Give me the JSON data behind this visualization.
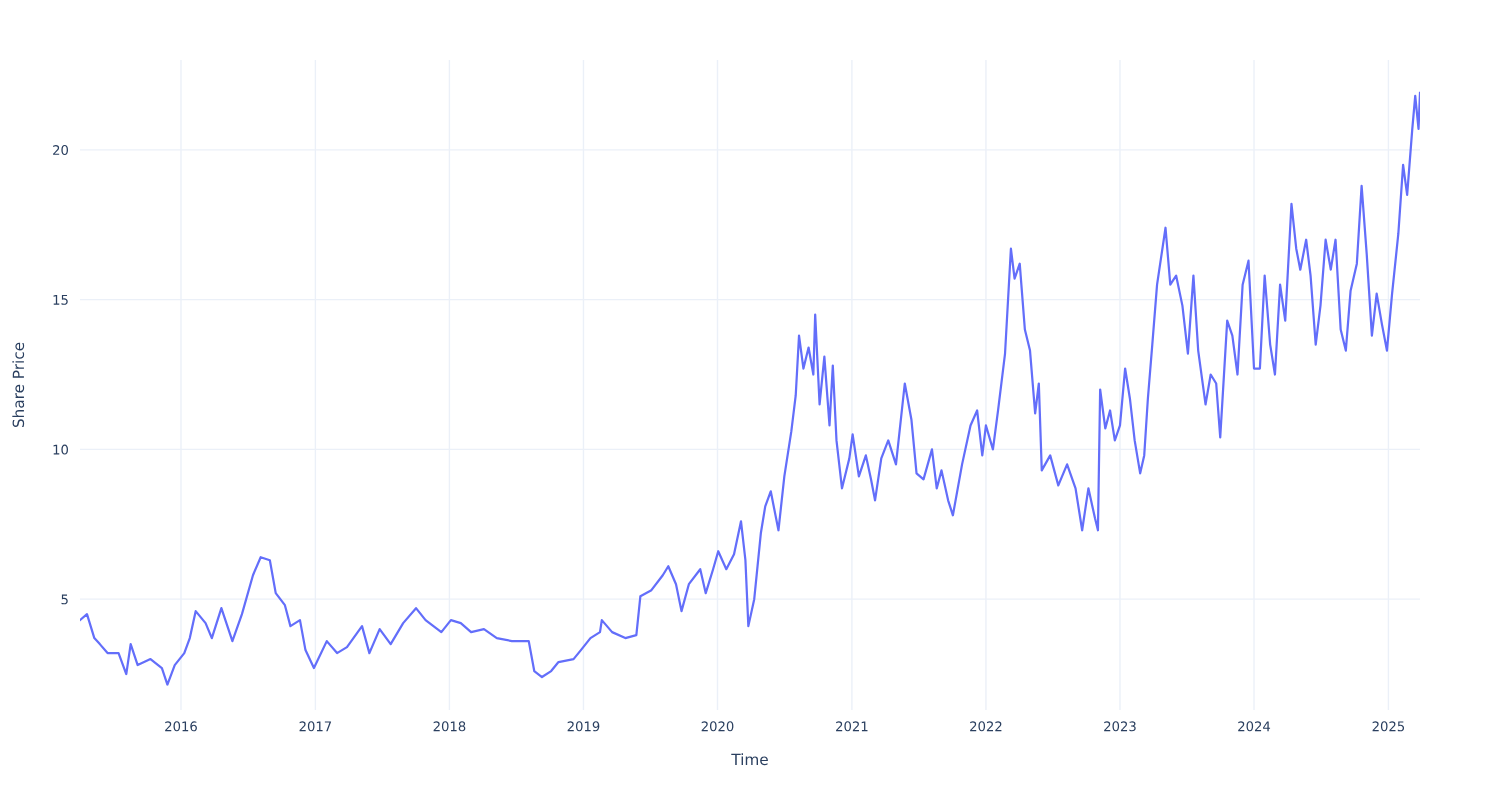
{
  "chart_data": {
    "type": "line",
    "xlabel": "Time",
    "ylabel": "Share Price",
    "color": "#636efa",
    "grid": true,
    "line_style": "solid",
    "marker": "none",
    "xlim": [
      "2015-04-01",
      "2025-03-28"
    ],
    "ylim": [
      1.3,
      23
    ],
    "xticks": [
      {
        "value": "2016-01-01",
        "label": "2016"
      },
      {
        "value": "2017-01-01",
        "label": "2017"
      },
      {
        "value": "2018-01-01",
        "label": "2018"
      },
      {
        "value": "2019-01-01",
        "label": "2019"
      },
      {
        "value": "2020-01-01",
        "label": "2020"
      },
      {
        "value": "2021-01-01",
        "label": "2021"
      },
      {
        "value": "2022-01-01",
        "label": "2022"
      },
      {
        "value": "2023-01-01",
        "label": "2023"
      },
      {
        "value": "2024-01-01",
        "label": "2024"
      },
      {
        "value": "2025-01-01",
        "label": "2025"
      }
    ],
    "yticks": [
      5,
      10,
      15,
      20
    ],
    "x": [
      "2015-04-01",
      "2015-04-20",
      "2015-05-10",
      "2015-05-25",
      "2015-06-15",
      "2015-07-15",
      "2015-08-05",
      "2015-08-17",
      "2015-09-05",
      "2015-10-10",
      "2015-11-10",
      "2015-11-25",
      "2015-12-15",
      "2016-01-10",
      "2016-01-25",
      "2016-02-10",
      "2016-03-08",
      "2016-03-25",
      "2016-04-20",
      "2016-05-20",
      "2016-06-15",
      "2016-07-15",
      "2016-08-05",
      "2016-08-30",
      "2016-09-15",
      "2016-10-10",
      "2016-10-25",
      "2016-11-20",
      "2016-12-05",
      "2016-12-28",
      "2017-02-01",
      "2017-03-01",
      "2017-03-28",
      "2017-05-08",
      "2017-05-28",
      "2017-06-25",
      "2017-07-25",
      "2017-08-28",
      "2017-10-02",
      "2017-10-28",
      "2017-12-10",
      "2018-01-05",
      "2018-02-01",
      "2018-03-01",
      "2018-04-05",
      "2018-05-10",
      "2018-06-20",
      "2018-08-05",
      "2018-08-20",
      "2018-09-10",
      "2018-10-05",
      "2018-10-25",
      "2018-12-05",
      "2018-12-25",
      "2019-01-20",
      "2019-02-15",
      "2019-02-20",
      "2019-03-20",
      "2019-04-25",
      "2019-05-25",
      "2019-06-05",
      "2019-07-05",
      "2019-08-05",
      "2019-08-20",
      "2019-09-10",
      "2019-09-25",
      "2019-10-15",
      "2019-11-15",
      "2019-11-30",
      "2019-12-20",
      "2020-01-03",
      "2020-01-25",
      "2020-02-15",
      "2020-03-05",
      "2020-03-17",
      "2020-03-25",
      "2020-04-10",
      "2020-04-28",
      "2020-05-10",
      "2020-05-25",
      "2020-06-15",
      "2020-07-01",
      "2020-07-20",
      "2020-08-01",
      "2020-08-10",
      "2020-08-22",
      "2020-09-05",
      "2020-09-18",
      "2020-09-23",
      "2020-10-05",
      "2020-10-18",
      "2020-11-01",
      "2020-11-10",
      "2020-11-20",
      "2020-12-05",
      "2020-12-25",
      "2021-01-03",
      "2021-01-20",
      "2021-02-08",
      "2021-02-22",
      "2021-03-05",
      "2021-03-22",
      "2021-04-10",
      "2021-05-01",
      "2021-05-25",
      "2021-06-12",
      "2021-06-26",
      "2021-07-15",
      "2021-08-07",
      "2021-08-20",
      "2021-09-02",
      "2021-09-20",
      "2021-10-03",
      "2021-10-28",
      "2021-11-20",
      "2021-12-08",
      "2021-12-22",
      "2022-01-01",
      "2022-01-20",
      "2022-02-03",
      "2022-02-22",
      "2022-03-10",
      "2022-03-20",
      "2022-04-03",
      "2022-04-17",
      "2022-05-01",
      "2022-05-15",
      "2022-05-25",
      "2022-06-02",
      "2022-06-25",
      "2022-07-17",
      "2022-08-10",
      "2022-09-02",
      "2022-09-20",
      "2022-10-07",
      "2022-10-25",
      "2022-11-02",
      "2022-11-08",
      "2022-11-22",
      "2022-12-05",
      "2022-12-18",
      "2023-01-01",
      "2023-01-15",
      "2023-01-28",
      "2023-02-10",
      "2023-02-25",
      "2023-03-08",
      "2023-03-18",
      "2023-03-30",
      "2023-04-12",
      "2023-05-05",
      "2023-05-18",
      "2023-06-03",
      "2023-06-20",
      "2023-07-05",
      "2023-07-20",
      "2023-08-02",
      "2023-08-22",
      "2023-09-05",
      "2023-09-20",
      "2023-10-01",
      "2023-10-20",
      "2023-11-03",
      "2023-11-17",
      "2023-12-01",
      "2023-12-17",
      "2024-01-01",
      "2024-01-17",
      "2024-01-30",
      "2024-02-14",
      "2024-02-27",
      "2024-03-12",
      "2024-03-26",
      "2024-04-12",
      "2024-04-25",
      "2024-05-06",
      "2024-05-22",
      "2024-06-03",
      "2024-06-17",
      "2024-06-30",
      "2024-07-14",
      "2024-07-28",
      "2024-08-10",
      "2024-08-24",
      "2024-09-07",
      "2024-09-20",
      "2024-10-07",
      "2024-10-20",
      "2024-11-03",
      "2024-11-17",
      "2024-11-30",
      "2024-12-14",
      "2024-12-28",
      "2025-01-11",
      "2025-01-28",
      "2025-02-10",
      "2025-02-21",
      "2025-03-07",
      "2025-03-15",
      "2025-03-24",
      "2025-03-28"
    ],
    "values": [
      4.3,
      4.5,
      3.7,
      3.5,
      3.2,
      3.2,
      2.5,
      3.5,
      2.8,
      3.0,
      2.7,
      2.15,
      2.8,
      3.2,
      3.7,
      4.6,
      4.2,
      3.7,
      4.7,
      3.6,
      4.5,
      5.8,
      6.4,
      6.3,
      5.2,
      4.8,
      4.1,
      4.3,
      3.3,
      2.7,
      3.6,
      3.2,
      3.4,
      4.1,
      3.2,
      4.0,
      3.5,
      4.2,
      4.7,
      4.3,
      3.9,
      4.3,
      4.2,
      3.9,
      4.0,
      3.7,
      3.6,
      3.6,
      2.6,
      2.4,
      2.6,
      2.9,
      3.0,
      3.3,
      3.7,
      3.9,
      4.3,
      3.9,
      3.7,
      3.8,
      5.1,
      5.3,
      5.8,
      6.1,
      5.5,
      4.6,
      5.5,
      6.0,
      5.2,
      6.0,
      6.6,
      6.0,
      6.5,
      7.6,
      6.3,
      4.1,
      5.0,
      7.2,
      8.1,
      8.6,
      7.3,
      9.1,
      10.6,
      11.8,
      13.8,
      12.7,
      13.4,
      12.5,
      14.5,
      11.5,
      13.1,
      10.8,
      12.8,
      10.3,
      8.7,
      9.7,
      10.5,
      9.1,
      9.8,
      9.0,
      8.3,
      9.7,
      10.3,
      9.5,
      12.2,
      11.0,
      9.2,
      9.0,
      10.0,
      8.7,
      9.3,
      8.3,
      7.8,
      9.5,
      10.8,
      11.3,
      9.8,
      10.8,
      10.0,
      11.3,
      13.2,
      16.7,
      15.7,
      16.2,
      14.0,
      13.3,
      11.2,
      12.2,
      9.3,
      9.8,
      8.8,
      9.5,
      8.7,
      7.3,
      8.7,
      7.7,
      7.3,
      12.0,
      10.7,
      11.3,
      10.3,
      10.8,
      12.7,
      11.7,
      10.3,
      9.2,
      9.8,
      11.7,
      13.5,
      15.5,
      17.4,
      15.5,
      15.8,
      14.8,
      13.2,
      15.8,
      13.3,
      11.5,
      12.5,
      12.2,
      10.4,
      14.3,
      13.8,
      12.5,
      15.5,
      16.3,
      12.7,
      12.7,
      15.8,
      13.5,
      12.5,
      15.5,
      14.3,
      18.2,
      16.7,
      16.0,
      17.0,
      15.8,
      13.5,
      14.8,
      17.0,
      16.0,
      17.0,
      14.0,
      13.3,
      15.3,
      16.2,
      18.8,
      16.5,
      13.8,
      15.2,
      14.2,
      13.3,
      15.2,
      17.2,
      19.5,
      18.5,
      20.7,
      21.8,
      20.7,
      21.9
    ]
  }
}
